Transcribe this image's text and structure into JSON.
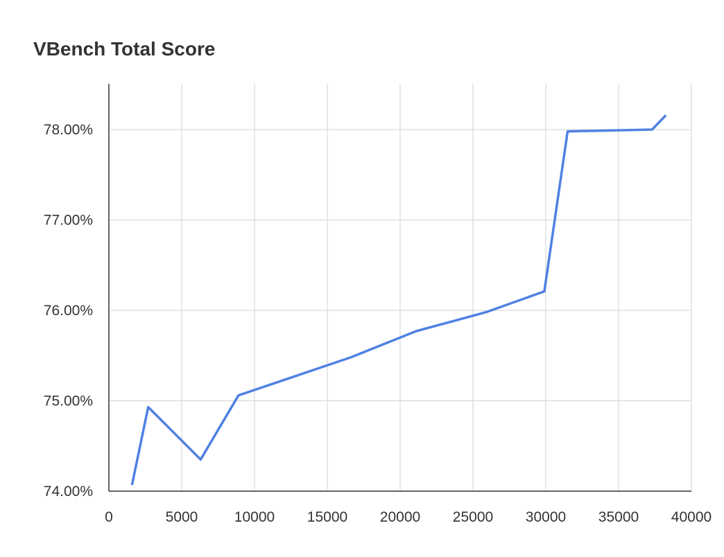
{
  "chart_data": {
    "type": "line",
    "title": "VBench Total Score",
    "xlabel": "",
    "ylabel": "",
    "xlim": [
      0,
      40000
    ],
    "ylim": [
      74.0,
      78.5
    ],
    "x_ticks": [
      0,
      5000,
      10000,
      15000,
      20000,
      25000,
      30000,
      35000,
      40000
    ],
    "x_tick_labels": [
      "0",
      "5000",
      "10000",
      "15000",
      "20000",
      "25000",
      "30000",
      "35000",
      "40000"
    ],
    "y_ticks": [
      74,
      75,
      76,
      77,
      78
    ],
    "y_tick_labels": [
      "74.00%",
      "75.00%",
      "76.00%",
      "77.00%",
      "78.00%"
    ],
    "grid": true,
    "legend": "none",
    "series": [
      {
        "color": "#4f81e3",
        "points": [
          {
            "x": 1600,
            "y": 74.08
          },
          {
            "x": 2700,
            "y": 74.93
          },
          {
            "x": 6300,
            "y": 74.35
          },
          {
            "x": 8900,
            "y": 75.06
          },
          {
            "x": 16600,
            "y": 75.48
          },
          {
            "x": 21100,
            "y": 75.77
          },
          {
            "x": 25900,
            "y": 75.98
          },
          {
            "x": 29900,
            "y": 76.21
          },
          {
            "x": 31500,
            "y": 77.98
          },
          {
            "x": 37300,
            "y": 78.0
          },
          {
            "x": 38200,
            "y": 78.15
          }
        ]
      }
    ]
  }
}
